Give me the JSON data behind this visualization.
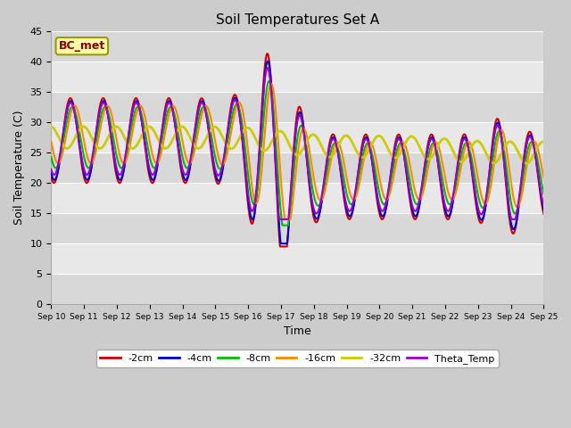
{
  "title": "Soil Temperatures Set A",
  "xlabel": "Time",
  "ylabel": "Soil Temperature (C)",
  "ylim": [
    0,
    45
  ],
  "yticks": [
    0,
    5,
    10,
    15,
    20,
    25,
    30,
    35,
    40,
    45
  ],
  "annotation": "BC_met",
  "series": {
    "-2cm": {
      "color": "#cc0000",
      "lw": 1.5
    },
    "-4cm": {
      "color": "#0000cc",
      "lw": 1.5
    },
    "-8cm": {
      "color": "#00bb00",
      "lw": 1.5
    },
    "-16cm": {
      "color": "#ff8800",
      "lw": 1.5
    },
    "-32cm": {
      "color": "#cccc00",
      "lw": 2.0
    },
    "Theta_Temp": {
      "color": "#9900cc",
      "lw": 1.5
    }
  },
  "x_labels": [
    "Sep 10",
    "Sep 11",
    "Sep 12",
    "Sep 13",
    "Sep 14",
    "Sep 15",
    "Sep 16",
    "Sep 17",
    "Sep 18",
    "Sep 19",
    "Sep 20",
    "Sep 21",
    "Sep 22",
    "Sep 23",
    "Sep 24",
    "Sep 25"
  ],
  "days": 15
}
